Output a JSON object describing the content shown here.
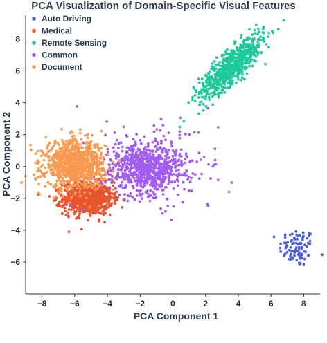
{
  "chart_data": {
    "type": "scatter",
    "title": "PCA Visualization of Domain-Specific Visual Features",
    "xlabel": "PCA Component 1",
    "ylabel": "PCA Component 2",
    "xlim": [
      -9,
      9
    ],
    "ylim": [
      -8,
      9.5
    ],
    "xticks": [
      -8,
      -6,
      -4,
      -2,
      0,
      2,
      4,
      6,
      8
    ],
    "yticks": [
      -6,
      -4,
      -2,
      0,
      2,
      4,
      6,
      8
    ],
    "grid": false,
    "legend_position": "top-left",
    "series": [
      {
        "name": "Auto Driving",
        "color": "#4f5fd6",
        "count": 90,
        "center": [
          7.6,
          -5.1
        ],
        "spread": [
          0.55,
          0.6
        ]
      },
      {
        "name": "Medical",
        "color": "#e8542f",
        "count": 900,
        "center": [
          -5.2,
          -2.0
        ],
        "spread": [
          0.75,
          0.5
        ]
      },
      {
        "name": "Remote Sensing",
        "color": "#1ec99a",
        "count": 700,
        "center": [
          3.6,
          6.3
        ],
        "spread": [
          1.1,
          1.1
        ]
      },
      {
        "name": "Common",
        "color": "#a25cf0",
        "count": 900,
        "center": [
          -1.6,
          -0.1
        ],
        "spread": [
          1.1,
          0.75
        ]
      },
      {
        "name": "Document",
        "color": "#f99a50",
        "count": 1000,
        "center": [
          -6.0,
          0.1
        ],
        "spread": [
          0.9,
          0.75
        ]
      }
    ]
  }
}
